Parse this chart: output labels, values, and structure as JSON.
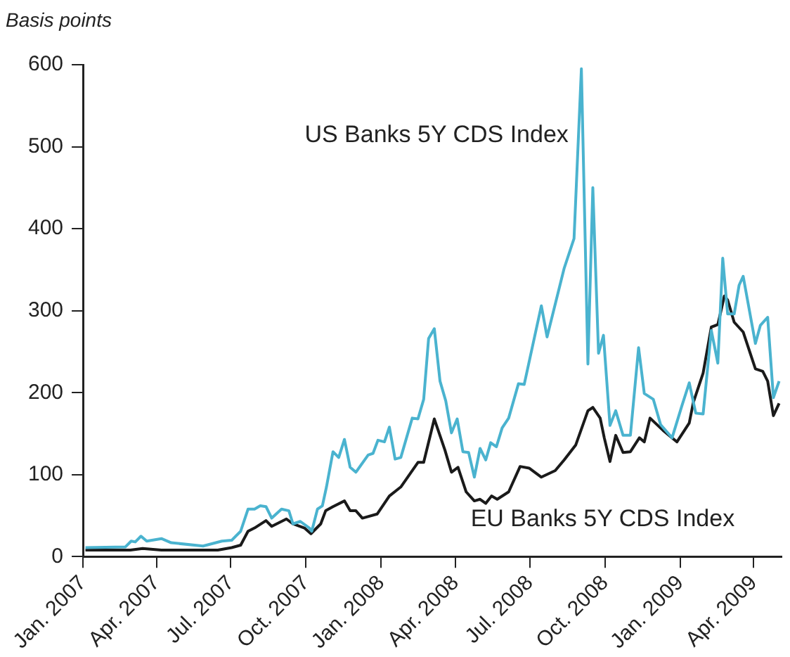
{
  "chart_data": {
    "type": "line",
    "ylabel": "Basis points",
    "xlim": [
      "2007-01",
      "2009-05-05"
    ],
    "xticks": [
      {
        "value": "2007-01",
        "label": "Jan. 2007"
      },
      {
        "value": "2007-04",
        "label": "Apr. 2007"
      },
      {
        "value": "2007-07",
        "label": "Jul. 2007"
      },
      {
        "value": "2007-10",
        "label": "Oct. 2007"
      },
      {
        "value": "2008-01",
        "label": "Jan. 2008"
      },
      {
        "value": "2008-04",
        "label": "Apr. 2008"
      },
      {
        "value": "2008-07",
        "label": "Jul. 2008"
      },
      {
        "value": "2008-10",
        "label": "Oct. 2008"
      },
      {
        "value": "2009-01",
        "label": "Jan. 2009"
      },
      {
        "value": "2009-04",
        "label": "Apr. 2009"
      }
    ],
    "ylim": [
      0,
      600
    ],
    "yticks": [
      0,
      100,
      200,
      300,
      400,
      500,
      600
    ],
    "grid": false,
    "legend": false,
    "marker": "none",
    "line_style": "solid",
    "series": [
      {
        "name": "US Banks 5Y CDS Index",
        "color": "#4ab3cf",
        "x": [
          "2007-01-04",
          "2007-02-22",
          "2007-03-01",
          "2007-03-06",
          "2007-03-13",
          "2007-03-20",
          "2007-04-07",
          "2007-04-19",
          "2007-05-28",
          "2007-06-20",
          "2007-07-02",
          "2007-07-13",
          "2007-07-22",
          "2007-07-30",
          "2007-08-06",
          "2007-08-13",
          "2007-08-20",
          "2007-09-01",
          "2007-09-10",
          "2007-09-15",
          "2007-09-24",
          "2007-10-05",
          "2007-10-08",
          "2007-10-15",
          "2007-10-21",
          "2007-10-26",
          "2007-11-03",
          "2007-11-10",
          "2007-11-17",
          "2007-11-24",
          "2007-12-01",
          "2007-12-16",
          "2007-12-22",
          "2007-12-28",
          "2008-01-05",
          "2008-01-11",
          "2008-01-18",
          "2008-01-25",
          "2008-02-08",
          "2008-02-15",
          "2008-02-22",
          "2008-02-28",
          "2008-03-06",
          "2008-03-13",
          "2008-03-20",
          "2008-03-27",
          "2008-04-03",
          "2008-04-10",
          "2008-04-17",
          "2008-04-24",
          "2008-05-01",
          "2008-05-08",
          "2008-05-14",
          "2008-05-21",
          "2008-05-28",
          "2008-06-05",
          "2008-06-17",
          "2008-06-24",
          "2008-07-15",
          "2008-07-22",
          "2008-08-12",
          "2008-08-24",
          "2008-09-02",
          "2008-09-10",
          "2008-09-16",
          "2008-09-23",
          "2008-09-29",
          "2008-10-07",
          "2008-10-14",
          "2008-10-23",
          "2008-11-01",
          "2008-11-11",
          "2008-11-18",
          "2008-11-29",
          "2008-12-08",
          "2008-12-22",
          "2009-01-03",
          "2009-01-12",
          "2009-01-20",
          "2009-01-29",
          "2009-02-08",
          "2009-02-16",
          "2009-02-22",
          "2009-02-28",
          "2009-03-08",
          "2009-03-14",
          "2009-03-19",
          "2009-04-03",
          "2009-04-09",
          "2009-04-18",
          "2009-04-25",
          "2009-05-02"
        ],
        "values": [
          11,
          12,
          19,
          18,
          25,
          19,
          22,
          17,
          13,
          19,
          20,
          31,
          58,
          58,
          62,
          61,
          47,
          58,
          56,
          40,
          43,
          35,
          31,
          58,
          62,
          85,
          128,
          121,
          143,
          109,
          103,
          124,
          126,
          142,
          140,
          158,
          119,
          121,
          169,
          168,
          192,
          266,
          278,
          214,
          190,
          151,
          168,
          128,
          127,
          97,
          132,
          118,
          139,
          134,
          157,
          169,
          211,
          210,
          306,
          268,
          352,
          388,
          595,
          235,
          450,
          248,
          270,
          160,
          178,
          148,
          148,
          255,
          199,
          192,
          161,
          145,
          184,
          212,
          175,
          174,
          276,
          236,
          364,
          296,
          296,
          331,
          342,
          260,
          282,
          292,
          194,
          214
        ]
      },
      {
        "name": "EU Banks 5Y CDS Index",
        "color": "#1a1a1a",
        "x": [
          "2007-01-04",
          "2007-02-28",
          "2007-03-15",
          "2007-04-07",
          "2007-06-15",
          "2007-07-02",
          "2007-07-13",
          "2007-07-22",
          "2007-07-30",
          "2007-08-13",
          "2007-08-20",
          "2007-09-07",
          "2007-09-15",
          "2007-09-29",
          "2007-10-07",
          "2007-10-19",
          "2007-10-25",
          "2007-11-03",
          "2007-11-17",
          "2007-11-24",
          "2007-12-01",
          "2007-12-09",
          "2007-12-27",
          "2008-01-11",
          "2008-01-25",
          "2008-02-15",
          "2008-02-22",
          "2008-03-06",
          "2008-03-19",
          "2008-03-27",
          "2008-04-04",
          "2008-04-14",
          "2008-04-24",
          "2008-05-01",
          "2008-05-08",
          "2008-05-15",
          "2008-05-22",
          "2008-06-05",
          "2008-06-19",
          "2008-06-30",
          "2008-07-15",
          "2008-08-01",
          "2008-08-12",
          "2008-08-26",
          "2008-09-10",
          "2008-09-16",
          "2008-09-25",
          "2008-09-30",
          "2008-10-07",
          "2008-10-14",
          "2008-10-23",
          "2008-11-01",
          "2008-11-12",
          "2008-11-18",
          "2008-11-25",
          "2008-12-11",
          "2008-12-28",
          "2009-01-12",
          "2009-01-17",
          "2009-01-29",
          "2009-02-08",
          "2009-02-16",
          "2009-02-24",
          "2009-02-28",
          "2009-03-08",
          "2009-03-19",
          "2009-04-03",
          "2009-04-12",
          "2009-04-18",
          "2009-04-25",
          "2009-05-02"
        ],
        "values": [
          8,
          8,
          10,
          8,
          8,
          11,
          14,
          31,
          35,
          44,
          37,
          46,
          40,
          35,
          28,
          40,
          56,
          61,
          68,
          56,
          56,
          47,
          52,
          74,
          85,
          115,
          115,
          168,
          130,
          103,
          109,
          79,
          68,
          70,
          65,
          74,
          70,
          79,
          110,
          108,
          97,
          105,
          118,
          136,
          178,
          182,
          169,
          145,
          116,
          148,
          127,
          128,
          145,
          140,
          169,
          154,
          140,
          163,
          188,
          224,
          280,
          283,
          318,
          313,
          286,
          274,
          229,
          226,
          214,
          172,
          187
        ]
      }
    ]
  }
}
